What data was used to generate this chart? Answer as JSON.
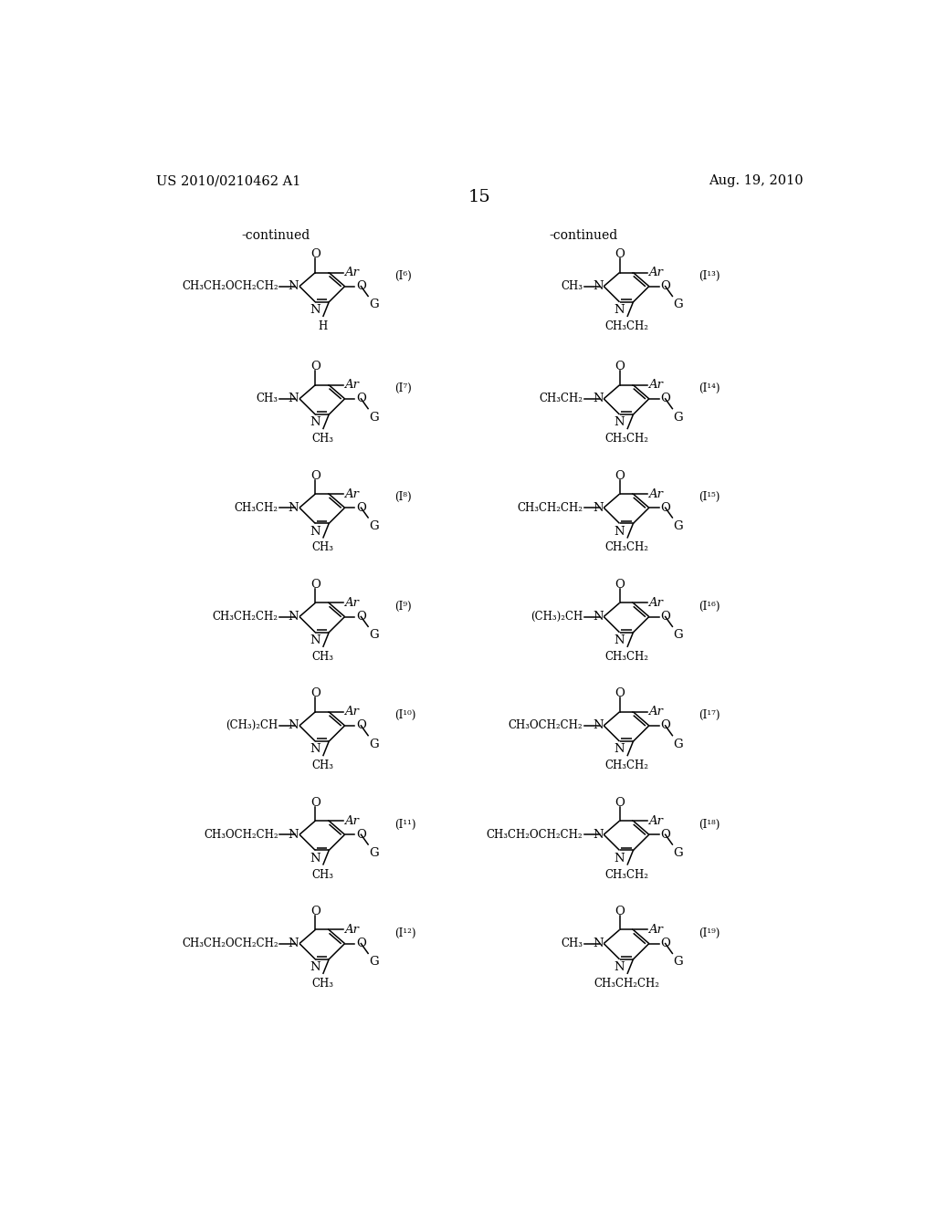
{
  "page_number": "15",
  "patent_number": "US 2010/0210462 A1",
  "patent_date": "Aug. 19, 2010",
  "background_color": "#ffffff",
  "text_color": "#000000",
  "continued_left": "-continued",
  "continued_right": "-continued",
  "structures": [
    {
      "id": "I6",
      "label": "(I⁶)",
      "col": 0,
      "row": 0,
      "n_substituent": "CH₃CH₂OCH₂CH₂",
      "bot_substituent": "H",
      "c3_substituent": "G",
      "ar": "Ar"
    },
    {
      "id": "I7",
      "label": "(I⁷)",
      "col": 0,
      "row": 1,
      "n_substituent": "CH₃",
      "bot_substituent": "CH₃",
      "c3_substituent": "G",
      "ar": "Ar"
    },
    {
      "id": "I8",
      "label": "(I⁸)",
      "col": 0,
      "row": 2,
      "n_substituent": "CH₃CH₂",
      "bot_substituent": "CH₃",
      "c3_substituent": "G",
      "ar": "Ar"
    },
    {
      "id": "I9",
      "label": "(I⁹)",
      "col": 0,
      "row": 3,
      "n_substituent": "CH₃CH₂CH₂",
      "bot_substituent": "CH₃",
      "c3_substituent": "G",
      "ar": "Ar"
    },
    {
      "id": "I10",
      "label": "(I¹⁰)",
      "col": 0,
      "row": 4,
      "n_substituent": "(CH₃)₂CH",
      "bot_substituent": "CH₃",
      "c3_substituent": "G",
      "ar": "Ar"
    },
    {
      "id": "I11",
      "label": "(I¹¹)",
      "col": 0,
      "row": 5,
      "n_substituent": "CH₃OCH₂CH₂",
      "bot_substituent": "CH₃",
      "c3_substituent": "G",
      "ar": "Ar"
    },
    {
      "id": "I12",
      "label": "(I¹²)",
      "col": 0,
      "row": 6,
      "n_substituent": "CH₃CH₂OCH₂CH₂",
      "bot_substituent": "CH₃",
      "c3_substituent": "G",
      "ar": "Ar"
    },
    {
      "id": "I13",
      "label": "(I¹³)",
      "col": 1,
      "row": 0,
      "n_substituent": "CH₃",
      "bot_substituent": "CH₃CH₂",
      "c3_substituent": "G",
      "ar": "Ar"
    },
    {
      "id": "I14",
      "label": "(I¹⁴)",
      "col": 1,
      "row": 1,
      "n_substituent": "CH₃CH₂",
      "bot_substituent": "CH₃CH₂",
      "c3_substituent": "G",
      "ar": "Ar"
    },
    {
      "id": "I15",
      "label": "(I¹⁵)",
      "col": 1,
      "row": 2,
      "n_substituent": "CH₃CH₂CH₂",
      "bot_substituent": "CH₃CH₂",
      "c3_substituent": "G",
      "ar": "Ar"
    },
    {
      "id": "I16",
      "label": "(I¹⁶)",
      "col": 1,
      "row": 3,
      "n_substituent": "(CH₃)₂CH",
      "bot_substituent": "CH₃CH₂",
      "c3_substituent": "G",
      "ar": "Ar"
    },
    {
      "id": "I17",
      "label": "(I¹⁷)",
      "col": 1,
      "row": 4,
      "n_substituent": "CH₃OCH₂CH₂",
      "bot_substituent": "CH₃CH₂",
      "c3_substituent": "G",
      "ar": "Ar"
    },
    {
      "id": "I18",
      "label": "(I¹⁸)",
      "col": 1,
      "row": 5,
      "n_substituent": "CH₃CH₂OCH₂CH₂",
      "bot_substituent": "CH₃CH₂",
      "c3_substituent": "G",
      "ar": "Ar"
    },
    {
      "id": "I19",
      "label": "(I¹⁹)",
      "col": 1,
      "row": 6,
      "n_substituent": "CH₃",
      "bot_substituent": "CH₃CH₂CH₂",
      "c3_substituent": "G",
      "ar": "Ar"
    }
  ]
}
